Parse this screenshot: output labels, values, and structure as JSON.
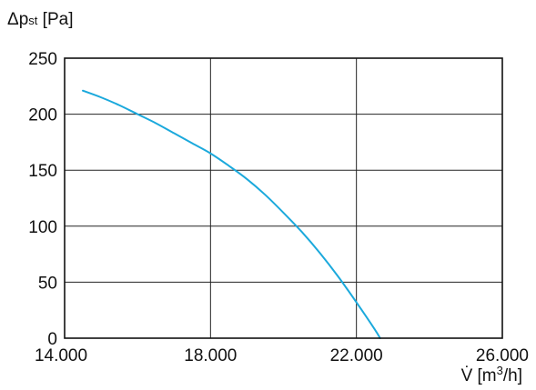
{
  "chart_data": {
    "type": "line",
    "ylabel_main": "Δp",
    "ylabel_sub": "st",
    "ylabel_unit": " [Pa]",
    "xlabel_main": "V̇ [m",
    "xlabel_sup": "3",
    "xlabel_tail": "/h]",
    "xlim": [
      14000,
      26000
    ],
    "ylim": [
      0,
      250
    ],
    "x_ticks": [
      14000,
      18000,
      22000,
      26000
    ],
    "x_tick_labels": [
      "14.000",
      "18.000",
      "22.000",
      "26.000"
    ],
    "y_ticks": [
      0,
      50,
      100,
      150,
      200,
      250
    ],
    "y_tick_labels": [
      "0",
      "50",
      "100",
      "150",
      "200",
      "250"
    ],
    "grid": true,
    "series": [
      {
        "color": "#1ba9dc",
        "x": [
          14500,
          15000,
          15500,
          16000,
          16500,
          17000,
          17500,
          18000,
          18500,
          19000,
          19500,
          20000,
          20500,
          21000,
          21500,
          22000,
          22500,
          22650
        ],
        "y": [
          221,
          215,
          208,
          200,
          192,
          183,
          174,
          165,
          154,
          142,
          128,
          112,
          95,
          76,
          55,
          32,
          8,
          0
        ]
      }
    ]
  }
}
